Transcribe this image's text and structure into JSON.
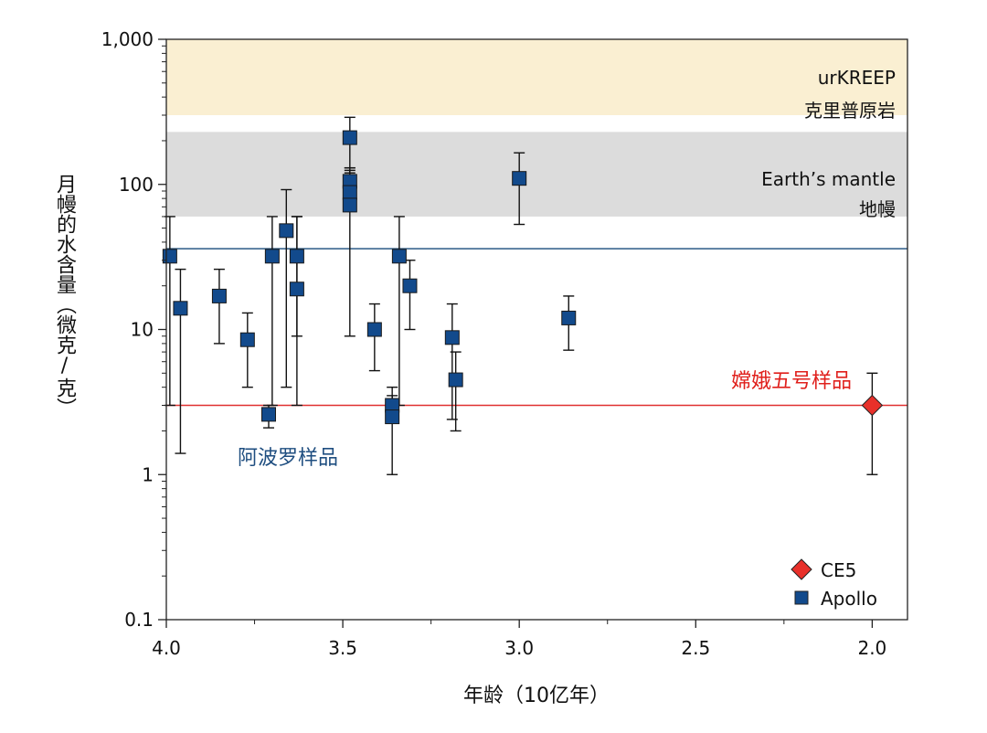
{
  "chart_data": {
    "type": "scatter",
    "xlabel": "年龄（10亿年）",
    "ylabel": "月幔的水含量（微克/克）",
    "x_reversed": true,
    "xlim": [
      4.0,
      1.9
    ],
    "ylim": [
      0.1,
      1000
    ],
    "y_scale": "log",
    "x_ticks": [
      "4.0",
      "3.5",
      "3.0",
      "2.5",
      "2.0"
    ],
    "y_ticks": [
      "0.1",
      "1",
      "10",
      "100",
      "1,000"
    ],
    "bands": [
      {
        "label": "urKREEP",
        "sublabel": "克里普原岩",
        "y_range": [
          300,
          1000
        ],
        "color": "#faefd2"
      },
      {
        "label": "Earth’s mantle",
        "sublabel": "地幔",
        "y_range": [
          60,
          230
        ],
        "color": "#dcdcdc"
      }
    ],
    "reference_lines": [
      {
        "label": "",
        "y": 36,
        "color": "#2b5a86"
      },
      {
        "label": "",
        "y": 3,
        "color": "#e03030"
      }
    ],
    "annotations": [
      {
        "text": "阿波罗样品",
        "color": "#1f4e80"
      },
      {
        "text": "嫦娥五号样品",
        "color": "#e0201c"
      }
    ],
    "legend_position": "bottom-right",
    "series": [
      {
        "name": "CE5",
        "marker": "diamond",
        "color": "#e8302a",
        "points": [
          {
            "x": 2.0,
            "y": 3.0,
            "ylo": 1.0,
            "yhi": 5.0
          }
        ]
      },
      {
        "name": "Apollo",
        "marker": "square",
        "color": "#124a8c",
        "points": [
          {
            "x": 3.99,
            "y": 32,
            "ylo": 3,
            "yhi": 60
          },
          {
            "x": 3.96,
            "y": 14,
            "ylo": 1.4,
            "yhi": 26
          },
          {
            "x": 3.85,
            "y": 17,
            "ylo": 8,
            "yhi": 26
          },
          {
            "x": 3.77,
            "y": 8.5,
            "ylo": 4,
            "yhi": 13
          },
          {
            "x": 3.71,
            "y": 2.6,
            "ylo": 2.1,
            "yhi": 3.0
          },
          {
            "x": 3.7,
            "y": 32,
            "ylo": 3,
            "yhi": 60
          },
          {
            "x": 3.66,
            "y": 48,
            "ylo": 4,
            "yhi": 92
          },
          {
            "x": 3.63,
            "y": 32,
            "ylo": 3,
            "yhi": 60
          },
          {
            "x": 3.63,
            "y": 19,
            "ylo": 9,
            "yhi": 60
          },
          {
            "x": 3.48,
            "y": 210,
            "ylo": 130,
            "yhi": 290
          },
          {
            "x": 3.48,
            "y": 105,
            "ylo": 80,
            "yhi": 130
          },
          {
            "x": 3.48,
            "y": 88,
            "ylo": 70,
            "yhi": 125
          },
          {
            "x": 3.48,
            "y": 72,
            "ylo": 9,
            "yhi": 120
          },
          {
            "x": 3.41,
            "y": 10,
            "ylo": 5.2,
            "yhi": 15
          },
          {
            "x": 3.36,
            "y": 3.0,
            "ylo": 2.4,
            "yhi": 4.0
          },
          {
            "x": 3.36,
            "y": 2.5,
            "ylo": 1.0,
            "yhi": 3.5
          },
          {
            "x": 3.34,
            "y": 32,
            "ylo": 3,
            "yhi": 60
          },
          {
            "x": 3.31,
            "y": 20,
            "ylo": 10,
            "yhi": 30
          },
          {
            "x": 3.19,
            "y": 8.8,
            "ylo": 2.4,
            "yhi": 15
          },
          {
            "x": 3.18,
            "y": 4.5,
            "ylo": 2.0,
            "yhi": 7.0
          },
          {
            "x": 3.0,
            "y": 110,
            "ylo": 53,
            "yhi": 165
          },
          {
            "x": 2.86,
            "y": 12,
            "ylo": 7.2,
            "yhi": 17
          }
        ]
      }
    ]
  }
}
